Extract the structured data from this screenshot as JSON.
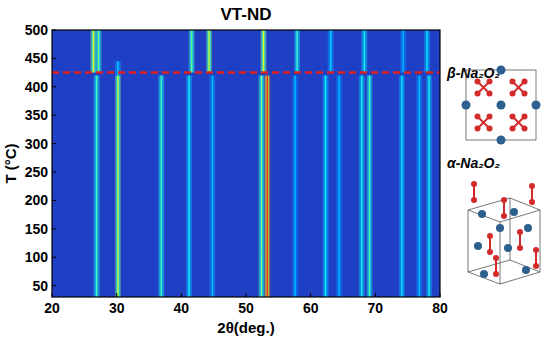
{
  "chart_data": {
    "type": "heatmap",
    "title": "VT-ND",
    "x_label": "2θ(deg.)",
    "y_label": "T (°C)",
    "xlim": [
      20,
      80
    ],
    "xticks": [
      20,
      30,
      40,
      50,
      60,
      70,
      80
    ],
    "ylim": [
      30,
      500
    ],
    "yticks": [
      50,
      100,
      150,
      200,
      250,
      300,
      350,
      400,
      450,
      500
    ],
    "peaks": [
      {
        "x": 26.9,
        "t_start": 30,
        "t_end": 420,
        "intensity": 0.45
      },
      {
        "x": 30.2,
        "t_start": 30,
        "t_end": 420,
        "intensity": 0.6
      },
      {
        "x": 36.9,
        "t_start": 30,
        "t_end": 420,
        "intensity": 0.45
      },
      {
        "x": 41.2,
        "t_start": 30,
        "t_end": 420,
        "intensity": 0.4
      },
      {
        "x": 44.8,
        "t_start": 30,
        "t_end": 420,
        "intensity": 0.33
      },
      {
        "x": 52.4,
        "t_start": 30,
        "t_end": 420,
        "intensity": 0.5
      },
      {
        "x": 53.3,
        "t_start": 30,
        "t_end": 420,
        "intensity": 0.85
      },
      {
        "x": 57.6,
        "t_start": 30,
        "t_end": 420,
        "intensity": 0.33
      },
      {
        "x": 62.3,
        "t_start": 30,
        "t_end": 420,
        "intensity": 0.38
      },
      {
        "x": 64.4,
        "t_start": 30,
        "t_end": 420,
        "intensity": 0.33
      },
      {
        "x": 67.9,
        "t_start": 30,
        "t_end": 420,
        "intensity": 0.4
      },
      {
        "x": 69.1,
        "t_start": 30,
        "t_end": 420,
        "intensity": 0.45
      },
      {
        "x": 74.1,
        "t_start": 30,
        "t_end": 420,
        "intensity": 0.38
      },
      {
        "x": 76.8,
        "t_start": 30,
        "t_end": 420,
        "intensity": 0.33
      },
      {
        "x": 78.3,
        "t_start": 30,
        "t_end": 420,
        "intensity": 0.4
      },
      {
        "x": 26.4,
        "t_start": 425,
        "t_end": 500,
        "intensity": 0.6
      },
      {
        "x": 27.2,
        "t_start": 425,
        "t_end": 500,
        "intensity": 0.5
      },
      {
        "x": 30.2,
        "t_start": 420,
        "t_end": 445,
        "intensity": 0.35
      },
      {
        "x": 41.6,
        "t_start": 425,
        "t_end": 500,
        "intensity": 0.5
      },
      {
        "x": 44.3,
        "t_start": 425,
        "t_end": 500,
        "intensity": 0.6
      },
      {
        "x": 52.7,
        "t_start": 425,
        "t_end": 500,
        "intensity": 0.6
      },
      {
        "x": 57.9,
        "t_start": 425,
        "t_end": 500,
        "intensity": 0.45
      },
      {
        "x": 63.1,
        "t_start": 425,
        "t_end": 500,
        "intensity": 0.35
      },
      {
        "x": 68.3,
        "t_start": 425,
        "t_end": 500,
        "intensity": 0.4
      },
      {
        "x": 74.3,
        "t_start": 425,
        "t_end": 500,
        "intensity": 0.33
      },
      {
        "x": 78.0,
        "t_start": 425,
        "t_end": 500,
        "intensity": 0.38
      }
    ],
    "transition_t": 425,
    "transition_color": "#e0201c",
    "phase_labels": [
      "β-Na₂O₂",
      "α-Na₂O₂"
    ]
  }
}
